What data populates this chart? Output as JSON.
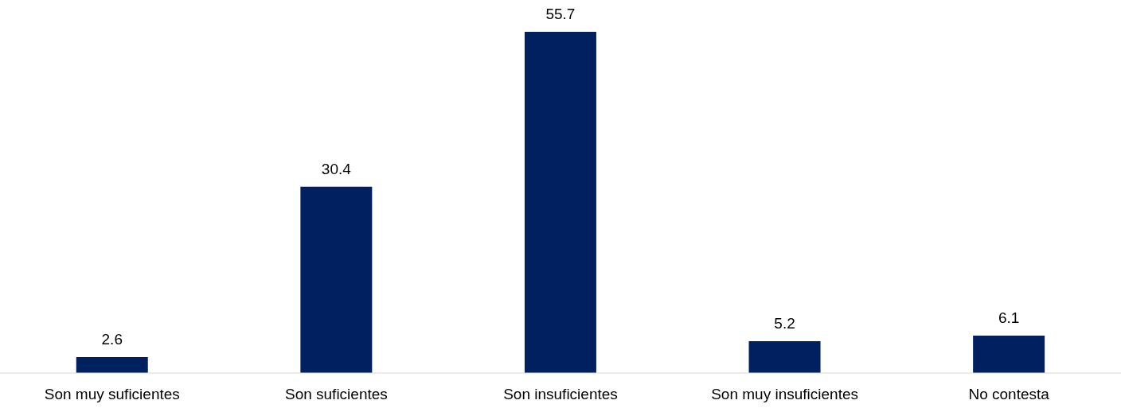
{
  "chart_data": {
    "type": "bar",
    "categories": [
      "Son muy suficientes",
      "Son suficientes",
      "Son insuficientes",
      "Son muy insuficientes",
      "No contesta"
    ],
    "values": [
      2.6,
      30.4,
      55.7,
      5.2,
      6.1
    ],
    "color": "#002060",
    "data_labels": true,
    "grid": false,
    "legend": false
  }
}
